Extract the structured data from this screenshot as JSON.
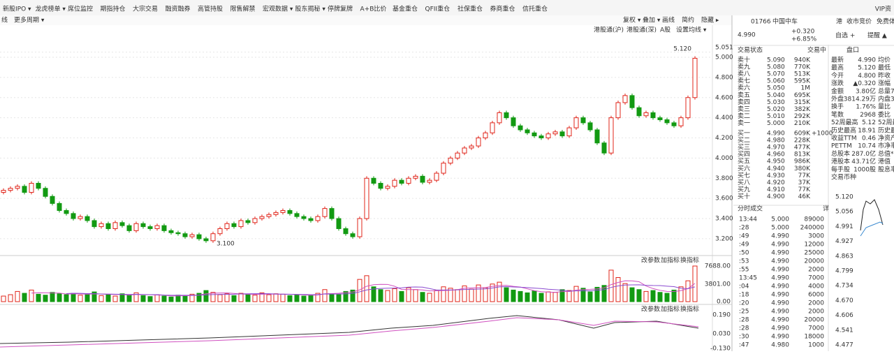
{
  "menu": [
    "新股IPO ▾",
    "龙虎榜单 ▾",
    "席位监控",
    "期指持仓",
    "大宗交易",
    "融资融券",
    "高管持股",
    "限售解禁",
    "宏观数据 ▾",
    "股东揭秘 ▾",
    "停牌复牌",
    "A+B比价",
    "基金重仓",
    "QFII重仓",
    "社保重仓",
    "券商重仓",
    "信托重仓"
  ],
  "toolbar": {
    "line": "线",
    "period": "更多周期 ▾",
    "buttons": [
      "复权 ▾",
      "叠加 ▾",
      "画线",
      "简约",
      "隐藏 ▸"
    ]
  },
  "chart": {
    "tabs": [
      "港股通(沪)",
      "港股通(深)",
      "A股",
      "设置均线 ▾"
    ],
    "high_label": "5.120",
    "low_label": "3.100",
    "price_ticks": [
      {
        "value": 5.051,
        "label": "5.051"
      },
      {
        "value": 5,
        "label": "5.000"
      },
      {
        "value": 4.8,
        "label": "4.800"
      },
      {
        "value": 4.6,
        "label": "4.600"
      },
      {
        "value": 4.4,
        "label": "4.400"
      },
      {
        "value": 4.2,
        "label": "4.200"
      },
      {
        "value": 4,
        "label": "4.000"
      },
      {
        "value": 3.8,
        "label": "3.800"
      },
      {
        "value": 3.6,
        "label": "3.600"
      },
      {
        "value": 3.4,
        "label": "3.400"
      },
      {
        "value": 3.2,
        "label": "3.200"
      }
    ],
    "closes": [
      3.68,
      3.7,
      3.72,
      3.66,
      3.75,
      3.7,
      3.62,
      3.55,
      3.48,
      3.45,
      3.4,
      3.42,
      3.38,
      3.32,
      3.35,
      3.3,
      3.36,
      3.33,
      3.28,
      3.35,
      3.32,
      3.3,
      3.33,
      3.28,
      3.26,
      3.25,
      3.22,
      3.24,
      3.2,
      3.18,
      3.25,
      3.3,
      3.35,
      3.32,
      3.38,
      3.36,
      3.4,
      3.42,
      3.44,
      3.46,
      3.48,
      3.45,
      3.42,
      3.4,
      3.38,
      3.42,
      3.5,
      3.4,
      3.3,
      3.25,
      3.22,
      3.4,
      3.8,
      3.75,
      3.7,
      3.72,
      3.78,
      3.75,
      3.8,
      3.82,
      3.76,
      3.78,
      3.85,
      3.95,
      4.0,
      4.05,
      4.1,
      4.12,
      4.2,
      4.25,
      4.35,
      4.45,
      4.4,
      4.32,
      4.28,
      4.25,
      4.22,
      4.2,
      4.24,
      4.26,
      4.22,
      4.3,
      4.4,
      4.35,
      4.28,
      4.15,
      4.05,
      4.4,
      4.55,
      4.62,
      4.5,
      4.42,
      4.45,
      4.4,
      4.38,
      4.35,
      4.32,
      4.4,
      4.6,
      4.99
    ],
    "indicator_buttons": [
      "改参数",
      "加指标",
      "换指标"
    ],
    "volume_ticks": [
      {
        "value": 7688,
        "label": "7688.00"
      },
      {
        "value": 3801,
        "label": "3801.00"
      },
      {
        "value": 0,
        "label": "0.00"
      }
    ],
    "volumes": [
      1200,
      1500,
      2200,
      1800,
      2500,
      1600,
      1400,
      2000,
      1700,
      1500,
      1800,
      1400,
      1600,
      2100,
      1300,
      1500,
      1200,
      1700,
      1400,
      1900,
      1300,
      1100,
      1500,
      1200,
      1000,
      1400,
      1300,
      1600,
      1800,
      2400,
      2000,
      1500,
      1700,
      1300,
      1800,
      1600,
      1400,
      1900,
      1500,
      1700,
      1600,
      1300,
      1500,
      1200,
      1400,
      1800,
      2600,
      1700,
      1500,
      2200,
      2500,
      4800,
      5600,
      3200,
      2600,
      2400,
      2800,
      2200,
      3000,
      2600,
      2000,
      1800,
      2400,
      3200,
      2900,
      2600,
      3400,
      2700,
      3600,
      3000,
      3800,
      4200,
      3000,
      2500,
      2200,
      1900,
      2300,
      1800,
      2100,
      2000,
      2600,
      2400,
      3300,
      2900,
      2100,
      3100,
      3500,
      6800,
      5200,
      3900,
      3000,
      2600,
      2200,
      2400,
      2000,
      1800,
      2500,
      3200,
      4500,
      7688
    ],
    "macd_ticks": [
      {
        "value": 0.19,
        "label": "0.190"
      },
      {
        "value": 0.03,
        "label": "0.030"
      },
      {
        "value": -0.13,
        "label": "-0.130"
      }
    ]
  },
  "quote": {
    "tabs": [
      "港",
      "收市竞价",
      "免费体"
    ],
    "code": "01766",
    "name": "中国中车",
    "price": "4.990",
    "change": "+0.320",
    "pct": "+6.85%",
    "watch": "自选 +",
    "alert": "提醒 ▲",
    "book_header": [
      "交易状态",
      "交易中"
    ],
    "asks": [
      [
        "卖十",
        "5.090",
        "940K"
      ],
      [
        "卖九",
        "5.080",
        "770K"
      ],
      [
        "卖八",
        "5.070",
        "513K"
      ],
      [
        "卖七",
        "5.060",
        "595K"
      ],
      [
        "卖六",
        "5.050",
        "1M"
      ],
      [
        "卖五",
        "5.040",
        "695K"
      ],
      [
        "卖四",
        "5.030",
        "315K"
      ],
      [
        "卖三",
        "5.020",
        "382K"
      ],
      [
        "卖二",
        "5.010",
        "292K"
      ],
      [
        "卖一",
        "5.000",
        "210K"
      ]
    ],
    "bids": [
      [
        "买一",
        "4.990",
        "609K"
      ],
      [
        "买二",
        "4.980",
        "228K"
      ],
      [
        "买三",
        "4.970",
        "477K"
      ],
      [
        "买四",
        "4.960",
        "813K"
      ],
      [
        "买五",
        "4.950",
        "986K"
      ],
      [
        "买六",
        "4.940",
        "380K"
      ],
      [
        "买七",
        "4.930",
        "77K"
      ],
      [
        "买八",
        "4.920",
        "37K"
      ],
      [
        "买九",
        "4.910",
        "77K"
      ],
      [
        "买十",
        "4.900",
        "46K"
      ]
    ],
    "bid_change": "+1000",
    "stats_header": "盘口",
    "stats": [
      [
        "最新",
        "4.990",
        "均价"
      ],
      [
        "最高",
        "5.120",
        "最低"
      ],
      [
        "今开",
        "4.800",
        "昨收"
      ],
      [
        "涨跌",
        "▲0.320",
        "涨幅"
      ],
      [
        "金额",
        "3.80亿",
        "总量7"
      ],
      [
        "外盘",
        "3814.29万",
        "内盘3"
      ],
      [
        "换手",
        "1.76%",
        "量比"
      ],
      [
        "笔数",
        "2968",
        "委比"
      ],
      [
        "52周最高",
        "5.12",
        "52周最"
      ],
      [
        "历史最高",
        "18.91",
        "历史最"
      ],
      [
        "收益TTM",
        "0.46",
        "净资产"
      ],
      [
        "PETTM",
        "10.74",
        "市净率"
      ],
      [
        "总股本",
        "287.0亿",
        "总值*"
      ],
      [
        "港股本",
        "43.71亿",
        "港值"
      ],
      [
        "每手股",
        "1000股",
        "股息率"
      ],
      [
        "交易币种",
        "",
        ""
      ]
    ],
    "trades_header": "分时成交",
    "trades_flag": "详",
    "trades": [
      [
        "13:44",
        "5.000",
        "89000"
      ],
      [
        ":28",
        "5.000",
        "240000"
      ],
      [
        ":49",
        "4.990",
        "3000"
      ],
      [
        ":49",
        "4.990",
        "12000"
      ],
      [
        ":50",
        "4.990",
        "25000"
      ],
      [
        ":53",
        "4.990",
        "20000"
      ],
      [
        ":55",
        "4.990",
        "2000"
      ],
      [
        "13:45",
        "4.990",
        "7000"
      ],
      [
        ":04",
        "4.990",
        "4000"
      ],
      [
        ":18",
        "4.990",
        "6000"
      ],
      [
        ":20",
        "4.990",
        "2000"
      ],
      [
        ":25",
        "4.990",
        "2000"
      ],
      [
        ":28",
        "4.990",
        "20000"
      ],
      [
        ":28",
        "4.990",
        "7000"
      ],
      [
        ":30",
        "4.990",
        "18000"
      ],
      [
        ":47",
        "4.980",
        "1000"
      ]
    ],
    "mini_ticks": [
      "5.120",
      "5.056",
      "4.991",
      "4.927",
      "4.863",
      "4.799",
      "4.734",
      "4.670",
      "4.606",
      "4.541",
      "4.477"
    ]
  },
  "vip": "VIP资"
}
